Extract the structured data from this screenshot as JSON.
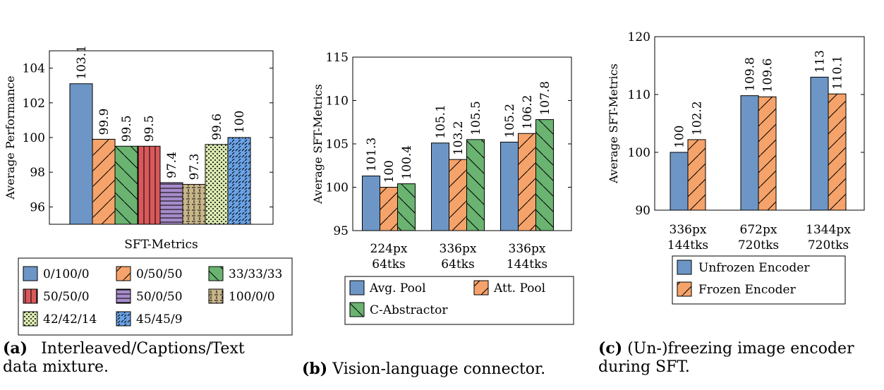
{
  "chart_data": [
    {
      "type": "bar",
      "panel": "a",
      "xlabel": "SFT-Metrics",
      "ylabel": "Average Performance",
      "ylim": [
        95,
        105
      ],
      "yticks": [
        96,
        98,
        100,
        102,
        104
      ],
      "grid": false,
      "legend": "bottom",
      "series": [
        {
          "name": "0/100/0",
          "value": 103.1,
          "label": "103.1",
          "color": "#6d96c6",
          "pattern": "none"
        },
        {
          "name": "0/50/50",
          "value": 99.9,
          "label": "99.9",
          "color": "#f5a36a",
          "pattern": "diag-fwd"
        },
        {
          "name": "33/33/33",
          "value": 99.5,
          "label": "99.5",
          "color": "#6ab371",
          "pattern": "diag-back"
        },
        {
          "name": "50/50/0",
          "value": 99.5,
          "label": "99.5",
          "color": "#d9595b",
          "pattern": "vertical"
        },
        {
          "name": "50/0/50",
          "value": 97.4,
          "label": "97.4",
          "color": "#a78bc9",
          "pattern": "horizontal"
        },
        {
          "name": "100/0/0",
          "value": 97.3,
          "label": "97.3",
          "color": "#c8b68a",
          "pattern": "grid-dash"
        },
        {
          "name": "42/42/14",
          "value": 99.6,
          "label": "99.6",
          "color": "#dbe9b0",
          "pattern": "dots"
        },
        {
          "name": "45/45/9",
          "value": 100,
          "label": "100",
          "color": "#6aa2e6",
          "pattern": "dashes"
        }
      ]
    },
    {
      "type": "bar",
      "panel": "b",
      "ylabel": "Average SFT-Metrics",
      "ylim": [
        95,
        115
      ],
      "yticks": [
        95,
        100,
        105,
        110,
        115
      ],
      "grid": false,
      "legend": "bottom",
      "categories": [
        [
          "224px",
          "64tks"
        ],
        [
          "336px",
          "64tks"
        ],
        [
          "336px",
          "144tks"
        ]
      ],
      "series": [
        {
          "name": "Avg. Pool",
          "values": [
            101.3,
            105.1,
            105.2
          ],
          "labels": [
            "101.3",
            "105.1",
            "105.2"
          ],
          "color": "#6d96c6",
          "pattern": "none"
        },
        {
          "name": "Att. Pool",
          "values": [
            100,
            103.2,
            106.2
          ],
          "labels": [
            "100",
            "103.2",
            "106.2"
          ],
          "color": "#f5a36a",
          "pattern": "diag-fwd"
        },
        {
          "name": "C-Abstractor",
          "values": [
            100.4,
            105.5,
            107.8
          ],
          "labels": [
            "100.4",
            "105.5",
            "107.8"
          ],
          "color": "#6ab371",
          "pattern": "diag-back"
        }
      ]
    },
    {
      "type": "bar",
      "panel": "c",
      "ylabel": "Average SFT-Metrics",
      "ylim": [
        90,
        120
      ],
      "yticks": [
        90,
        100,
        110,
        120
      ],
      "grid": false,
      "legend": "bottom",
      "categories": [
        [
          "336px",
          "144tks"
        ],
        [
          "672px",
          "720tks"
        ],
        [
          "1344px",
          "720tks"
        ]
      ],
      "series": [
        {
          "name": "Unfrozen Encoder",
          "values": [
            100,
            109.8,
            113
          ],
          "labels": [
            "100",
            "109.8",
            "113"
          ],
          "color": "#6d96c6",
          "pattern": "none"
        },
        {
          "name": "Frozen Encoder",
          "values": [
            102.2,
            109.6,
            110.1
          ],
          "labels": [
            "102.2",
            "109.6",
            "110.1"
          ],
          "color": "#f5a36a",
          "pattern": "diag-fwd"
        }
      ]
    }
  ],
  "captions": {
    "a": {
      "tag": "(a)",
      "line1": "Interleaved/Captions/Text",
      "line2": "data mixture."
    },
    "b": {
      "tag": "(b)",
      "line1": "Vision-language connector."
    },
    "c": {
      "tag": "(c)",
      "line1": "(Un-)freezing image encoder",
      "line2": "during SFT."
    }
  }
}
